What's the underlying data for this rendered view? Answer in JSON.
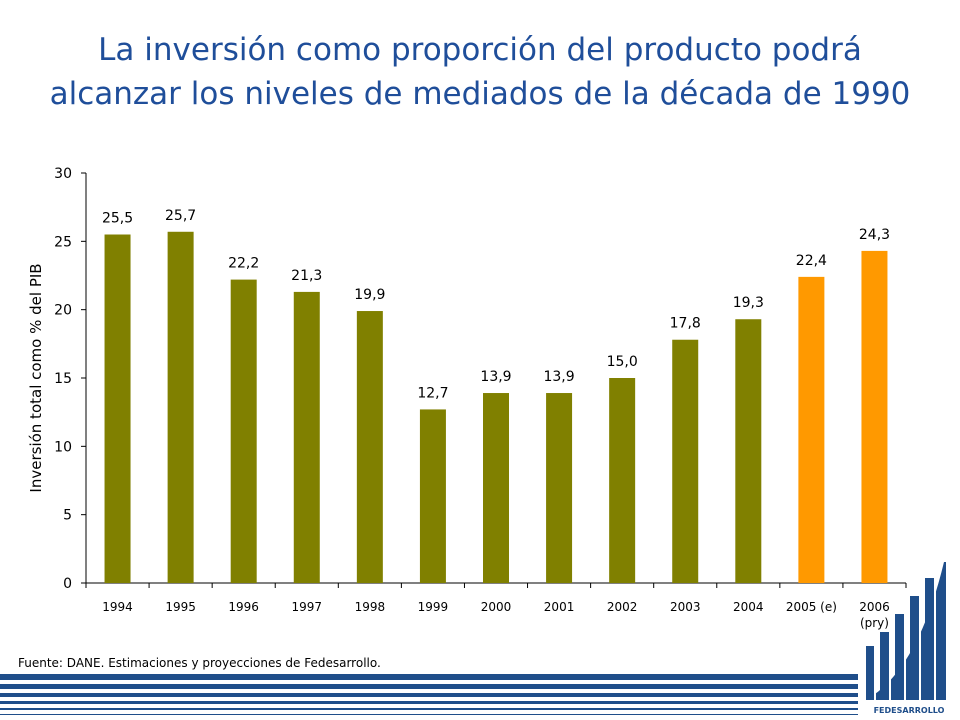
{
  "title": {
    "line1": "La inversión como proporción del producto podrá",
    "line2": "alcanzar los niveles de mediados de la década de 1990"
  },
  "source": "Fuente: DANE. Estimaciones y proyecciones de Fedesarrollo.",
  "logo": {
    "text": "FEDESARROLLO"
  },
  "colors": {
    "title": "#1f4e9a",
    "historical": "#808000",
    "projected": "#ff9900",
    "brand": "#1f4e8a"
  },
  "chart_data": {
    "type": "bar",
    "title": "",
    "xlabel": "",
    "ylabel": "Inversión total como % del PIB",
    "ylim": [
      0,
      30
    ],
    "yticks": [
      0,
      5,
      10,
      15,
      20,
      25,
      30
    ],
    "grid": false,
    "legend": "none",
    "categories": [
      [
        "1994"
      ],
      [
        "1995"
      ],
      [
        "1996"
      ],
      [
        "1997"
      ],
      [
        "1998"
      ],
      [
        "1999"
      ],
      [
        "2000"
      ],
      [
        "2001"
      ],
      [
        "2002"
      ],
      [
        "2003"
      ],
      [
        "2004"
      ],
      [
        "2005 (e)"
      ],
      [
        "2006",
        "(pry)"
      ]
    ],
    "values": [
      25.5,
      25.7,
      22.2,
      21.3,
      19.9,
      12.7,
      13.9,
      13.9,
      15.0,
      17.8,
      19.3,
      22.4,
      24.3
    ],
    "data_labels": [
      "25,5",
      "25,7",
      "22,2",
      "21,3",
      "19,9",
      "12,7",
      "13,9",
      "13,9",
      "15,0",
      "17,8",
      "19,3",
      "22,4",
      "24,3"
    ],
    "bar_kind": [
      "historical",
      "historical",
      "historical",
      "historical",
      "historical",
      "historical",
      "historical",
      "historical",
      "historical",
      "historical",
      "historical",
      "projected",
      "projected"
    ]
  }
}
